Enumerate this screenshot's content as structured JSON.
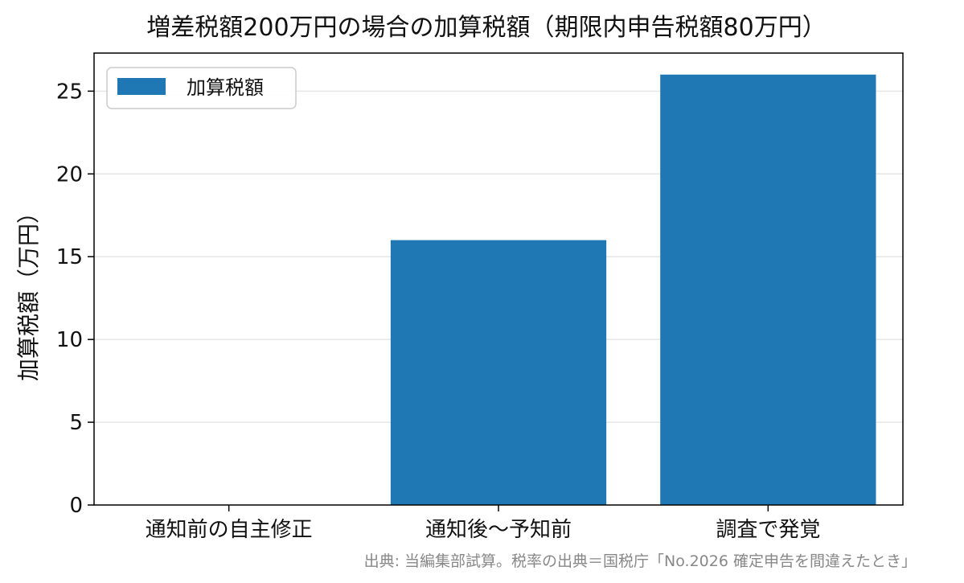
{
  "chart_data": {
    "type": "bar",
    "title": "増差税額200万円の場合の加算税額（期限内申告税額80万円）",
    "xlabel": "",
    "ylabel": "加算税額（万円）",
    "categories": [
      "通知前の自主修正",
      "通知後〜予知前",
      "調査で発覚"
    ],
    "series": [
      {
        "name": "加算税額",
        "values": [
          0,
          16,
          26
        ],
        "color": "#1f77b4"
      }
    ],
    "ylim": [
      0,
      27.3
    ],
    "yticks": [
      0,
      5,
      10,
      15,
      20,
      25
    ],
    "grid": "y",
    "legend_position": "top-left",
    "source": "出典: 当編集部試算。税率の出典＝国税庁「No.2026 確定申告を間違えたとき」"
  }
}
